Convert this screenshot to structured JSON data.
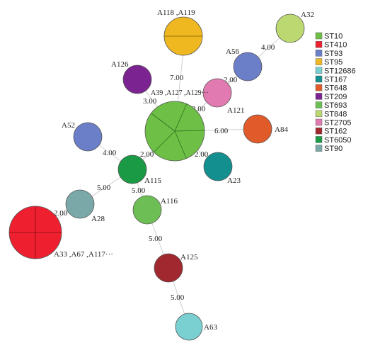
{
  "nodes": {
    "a118": {
      "label": "A118 ,A119",
      "color": "#f0b820"
    },
    "a32": {
      "label": "A32",
      "color": "#bcd870"
    },
    "a56": {
      "label": "A56",
      "color": "#6a7fc8"
    },
    "a126": {
      "label": "A126",
      "color": "#7b2390"
    },
    "a121": {
      "label": "A121",
      "color": "#e07ab0"
    },
    "a39": {
      "label": "A39 ,A127 ,A129···",
      "color": "#6dbf45"
    },
    "a84": {
      "label": "A84",
      "color": "#e05a2a"
    },
    "a52": {
      "label": "A52",
      "color": "#6a7fc8"
    },
    "a115": {
      "label": "A115",
      "color": "#1a9a45"
    },
    "a23": {
      "label": "A23",
      "color": "#148f8f"
    },
    "a28": {
      "label": "A28",
      "color": "#7aa8a8"
    },
    "a116": {
      "label": "A116",
      "color": "#6dbf55"
    },
    "a33": {
      "label": "A33 ,A67 ,A117···",
      "color": "#ee2030"
    },
    "a125": {
      "label": "A125",
      "color": "#a0282e"
    },
    "a63": {
      "label": "A63",
      "color": "#7acfd0"
    }
  },
  "edges": {
    "center_a118": "7.00",
    "a56_a32": "4.00",
    "center_a126": "3.00",
    "center_a121": "2.00",
    "a121_a56": "2.00",
    "center_a84": "6.00",
    "a52_a115": "4.00",
    "center_a115": "2.00",
    "center_a23": "2.00",
    "a115_a28": "5.00",
    "a115_a116": "5.00",
    "a28_a33": "2.00",
    "a116_a125": "5.00",
    "a125_a63": "5.00"
  },
  "legend": [
    {
      "label": "ST10",
      "color": "#6dbf45"
    },
    {
      "label": "ST410",
      "color": "#ee2030"
    },
    {
      "label": "ST93",
      "color": "#6a7fc8"
    },
    {
      "label": "ST95",
      "color": "#f0b820"
    },
    {
      "label": "ST12686",
      "color": "#7acfd0"
    },
    {
      "label": "ST167",
      "color": "#148f8f"
    },
    {
      "label": "ST648",
      "color": "#e05a2a"
    },
    {
      "label": "ST209",
      "color": "#7b2390"
    },
    {
      "label": "ST693",
      "color": "#6dbf55"
    },
    {
      "label": "ST848",
      "color": "#bcd870"
    },
    {
      "label": "ST2705",
      "color": "#e07ab0"
    },
    {
      "label": "ST162",
      "color": "#a0282e"
    },
    {
      "label": "ST6050",
      "color": "#1a9a45"
    },
    {
      "label": "ST90",
      "color": "#7aa8a8"
    }
  ]
}
